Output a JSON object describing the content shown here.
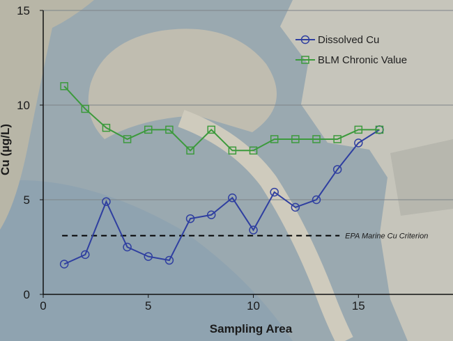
{
  "chart_data": {
    "type": "line",
    "x": [
      1,
      2,
      3,
      4,
      5,
      6,
      7,
      8,
      9,
      10,
      11,
      12,
      13,
      14,
      15,
      16
    ],
    "series": [
      {
        "name": "Dissolved Cu",
        "marker": "circle",
        "color": "#2f3fa0",
        "values": [
          1.6,
          2.1,
          4.9,
          2.5,
          2.0,
          1.8,
          4.0,
          4.2,
          5.1,
          3.4,
          5.4,
          4.6,
          5.0,
          6.6,
          8.0,
          8.7
        ]
      },
      {
        "name": "BLM Chronic Value",
        "marker": "square",
        "color": "#3c9a3c",
        "values": [
          11.0,
          9.8,
          8.8,
          8.2,
          8.7,
          8.7,
          7.6,
          8.7,
          7.6,
          7.6,
          8.2,
          8.2,
          8.2,
          8.2,
          8.7,
          8.7
        ]
      }
    ],
    "reference_lines": [
      {
        "label": "EPA Marine Cu Criterion",
        "y": 3.1,
        "x_range": [
          0.9,
          14.1
        ],
        "style": "dashed",
        "color": "#000000"
      }
    ],
    "xlabel": "Sampling Area",
    "ylabel": "Cu (µg/L)",
    "xlim": [
      0,
      19.5
    ],
    "ylim": [
      0,
      15
    ],
    "xticks": [
      0,
      5,
      10,
      15
    ],
    "yticks": [
      0,
      5,
      10,
      15
    ],
    "grid": "horizontal",
    "legend": "top-right"
  }
}
